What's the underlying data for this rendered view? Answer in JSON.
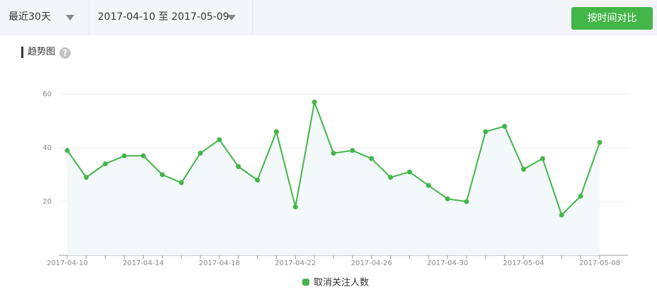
{
  "toolbar": {
    "period": "最近30天",
    "date_range": "2017-04-10 至 2017-05-09",
    "compare_button": "按时间对比"
  },
  "section_title": "趋势图",
  "help_icon": "?",
  "chart_data": {
    "type": "line",
    "categories": [
      "2017-04-10",
      null,
      null,
      null,
      "2017-04-14",
      null,
      null,
      null,
      "2017-04-18",
      null,
      null,
      null,
      "2017-04-22",
      null,
      null,
      null,
      "2017-04-26",
      null,
      null,
      null,
      "2017-04-30",
      null,
      null,
      null,
      "2017-05-04",
      null,
      null,
      null,
      "2017-05-08"
    ],
    "series": [
      {
        "name": "取消关注人数",
        "color": "#44b549",
        "values": [
          39,
          29,
          34,
          37,
          37,
          30,
          27,
          38,
          43,
          33,
          28,
          46,
          18,
          57,
          38,
          39,
          36,
          29,
          31,
          26,
          21,
          20,
          46,
          48,
          32,
          36,
          15,
          22,
          42
        ]
      }
    ],
    "ylim": [
      0,
      60
    ],
    "yticks": [
      20,
      40,
      60
    ],
    "grid": true
  }
}
